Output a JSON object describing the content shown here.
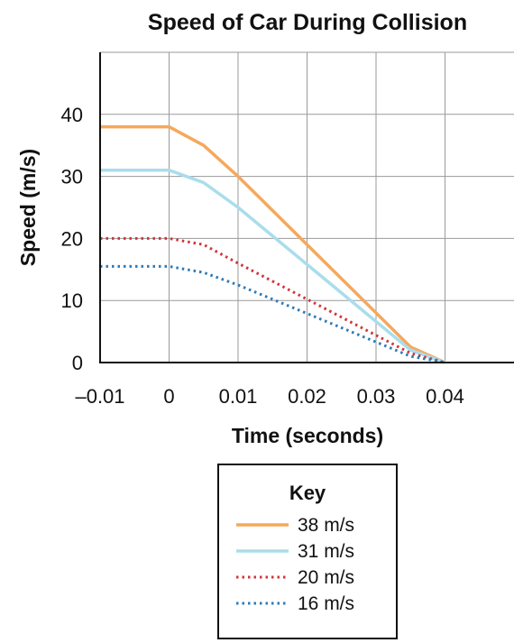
{
  "chart_data": {
    "type": "line",
    "title": "Speed of Car During Collision",
    "xlabel": "Time (seconds)",
    "ylabel": "Speed (m/s)",
    "xlim": [
      -0.01,
      0.05
    ],
    "ylim": [
      0,
      50
    ],
    "x_ticks": [
      -0.01,
      0,
      0.01,
      0.02,
      0.03,
      0.04
    ],
    "x_tick_labels": [
      "–0.01",
      "0",
      "0.01",
      "0.02",
      "0.03",
      "0.04"
    ],
    "y_ticks": [
      0,
      10,
      20,
      30,
      40
    ],
    "y_tick_labels": [
      "0",
      "10",
      "20",
      "30",
      "40"
    ],
    "grid": true,
    "legend": {
      "title": "Key",
      "position": "bottom-center"
    },
    "series": [
      {
        "name": "38 m/s",
        "color": "#F5A85C",
        "style": "solid",
        "x": [
          -0.01,
          0,
          0.005,
          0.01,
          0.035,
          0.04
        ],
        "y": [
          38,
          38,
          35,
          30,
          2.5,
          0
        ]
      },
      {
        "name": "31 m/s",
        "color": "#A9DDEC",
        "style": "solid",
        "x": [
          -0.01,
          0,
          0.005,
          0.01,
          0.035,
          0.04
        ],
        "y": [
          31,
          31,
          29,
          25,
          2,
          0
        ]
      },
      {
        "name": "20 m/s",
        "color": "#D0343C",
        "style": "dotted",
        "x": [
          -0.01,
          0,
          0.005,
          0.01,
          0.035,
          0.04
        ],
        "y": [
          20,
          20,
          19,
          16,
          1.5,
          0
        ]
      },
      {
        "name": "16 m/s",
        "color": "#2E7AB8",
        "style": "dotted",
        "x": [
          -0.01,
          0,
          0.005,
          0.01,
          0.035,
          0.04
        ],
        "y": [
          15.5,
          15.5,
          14.5,
          12.5,
          1,
          0
        ]
      }
    ]
  }
}
